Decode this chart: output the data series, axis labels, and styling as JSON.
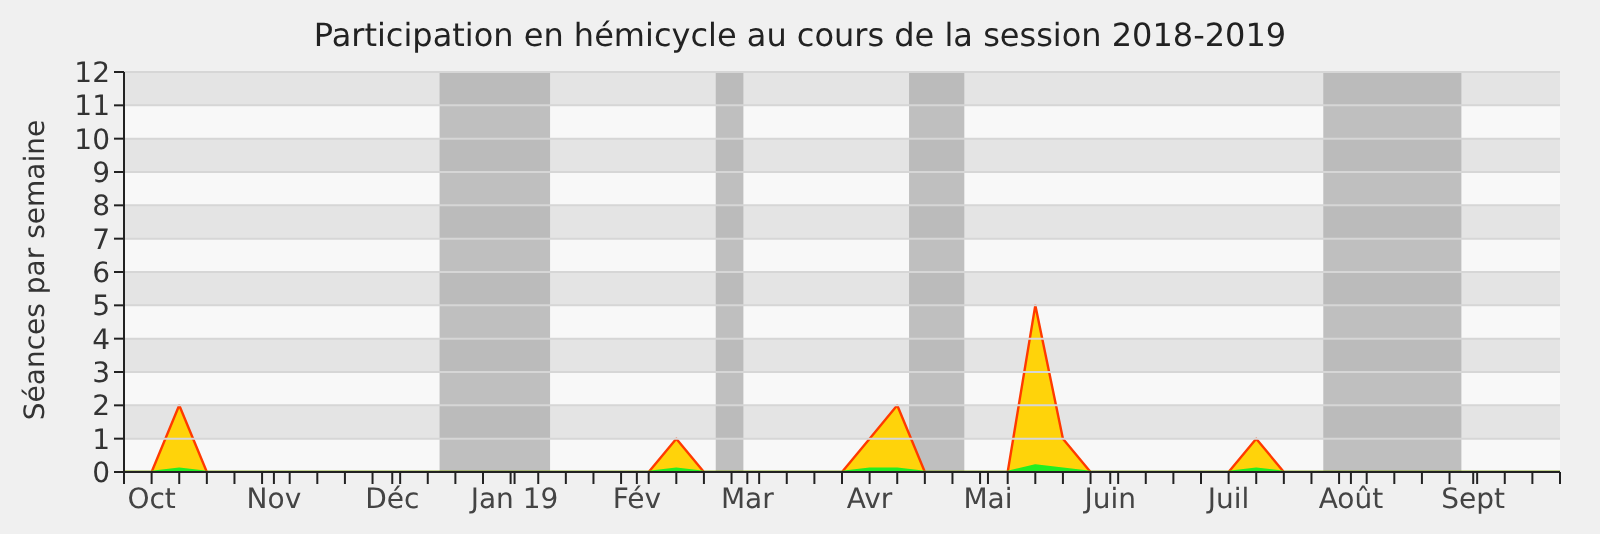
{
  "chart_data": {
    "type": "area",
    "title": "Participation en hémicycle au cours de la session 2018-2019",
    "ylabel": "Séances par semaine",
    "x": [
      "2018-09-24",
      "2018-10-01",
      "2018-10-08",
      "2018-10-15",
      "2018-10-22",
      "2018-10-29",
      "2018-11-05",
      "2018-11-12",
      "2018-11-19",
      "2018-11-26",
      "2018-12-03",
      "2018-12-10",
      "2018-12-17",
      "2018-12-24",
      "2018-12-31",
      "2019-01-07",
      "2019-01-14",
      "2019-01-21",
      "2019-01-28",
      "2019-02-04",
      "2019-02-11",
      "2019-02-18",
      "2019-02-25",
      "2019-03-04",
      "2019-03-11",
      "2019-03-18",
      "2019-03-25",
      "2019-04-01",
      "2019-04-08",
      "2019-04-15",
      "2019-04-22",
      "2019-04-29",
      "2019-05-06",
      "2019-05-13",
      "2019-05-20",
      "2019-05-27",
      "2019-06-03",
      "2019-06-10",
      "2019-06-17",
      "2019-06-24",
      "2019-07-01",
      "2019-07-08",
      "2019-07-15",
      "2019-07-22",
      "2019-07-29",
      "2019-08-05",
      "2019-08-12",
      "2019-08-19",
      "2019-08-26",
      "2019-09-02",
      "2019-09-09",
      "2019-09-16",
      "2019-09-23"
    ],
    "series": [
      {
        "color": "#ffd30a",
        "values": [
          0,
          0,
          2,
          0,
          0,
          0,
          0,
          0,
          0,
          0,
          0,
          0,
          0,
          0,
          0,
          0,
          0,
          0,
          0,
          0,
          1,
          0,
          0,
          0,
          0,
          0,
          0,
          1,
          2,
          0,
          0,
          0,
          0,
          5,
          1,
          0,
          0,
          0,
          0,
          0,
          0,
          1,
          0,
          0,
          0,
          0,
          0,
          0,
          0,
          0,
          0,
          0,
          0
        ]
      },
      {
        "color": "#22ee22",
        "values": [
          0,
          0,
          0.1,
          0,
          0,
          0,
          0,
          0,
          0,
          0,
          0,
          0,
          0,
          0,
          0,
          0,
          0,
          0,
          0,
          0,
          0.1,
          0,
          0,
          0,
          0,
          0,
          0,
          0.1,
          0.1,
          0,
          0,
          0,
          0,
          0.2,
          0.1,
          0,
          0,
          0,
          0,
          0,
          0,
          0.1,
          0,
          0,
          0,
          0,
          0,
          0,
          0,
          0,
          0,
          0,
          0
        ]
      }
    ],
    "xlim": [
      "2018-09-24",
      "2019-09-23"
    ],
    "xticks": [
      {
        "value": "2018-10-01",
        "label": "Oct"
      },
      {
        "value": "2018-11-01",
        "label": "Nov"
      },
      {
        "value": "2018-12-01",
        "label": "Déc"
      },
      {
        "value": "2019-01-01",
        "label": "Jan 19"
      },
      {
        "value": "2019-02-01",
        "label": "Fév"
      },
      {
        "value": "2019-03-01",
        "label": "Mar"
      },
      {
        "value": "2019-04-01",
        "label": "Avr"
      },
      {
        "value": "2019-05-01",
        "label": "Mai"
      },
      {
        "value": "2019-06-01",
        "label": "Juin"
      },
      {
        "value": "2019-07-01",
        "label": "Juil"
      },
      {
        "value": "2019-08-01",
        "label": "Août"
      },
      {
        "value": "2019-09-01",
        "label": "Sept"
      }
    ],
    "ylim": [
      0,
      12
    ],
    "yticks": [
      0,
      1,
      2,
      3,
      4,
      5,
      6,
      7,
      8,
      9,
      10,
      11,
      12
    ],
    "grid": "y",
    "bands": [
      {
        "axis": "x",
        "from": "2018-12-13",
        "to": "2019-01-10",
        "color": "#b0b0b0"
      },
      {
        "axis": "x",
        "from": "2019-02-21",
        "to": "2019-02-28",
        "color": "#b0b0b0"
      },
      {
        "axis": "x",
        "from": "2019-04-11",
        "to": "2019-04-25",
        "color": "#b0b0b0"
      },
      {
        "axis": "x",
        "from": "2019-07-25",
        "to": "2019-08-29",
        "color": "#b0b0b0"
      }
    ]
  }
}
